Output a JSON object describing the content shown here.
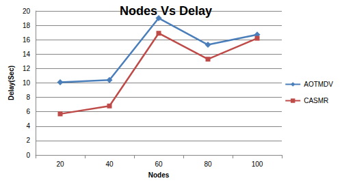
{
  "chart_data": {
    "type": "line",
    "title": "Nodes Vs Delay",
    "x_label": "Nodes",
    "y_label": "Delay(Sec)",
    "categories": [
      "20",
      "40",
      "60",
      "80",
      "100"
    ],
    "series": [
      {
        "name": "AOTMDV",
        "color": "#4a7ebb",
        "marker": "diamond",
        "values": [
          10.1,
          10.4,
          19.0,
          15.3,
          16.7
        ]
      },
      {
        "name": "CASMR",
        "color": "#be4b48",
        "marker": "square",
        "values": [
          5.7,
          6.8,
          16.9,
          13.3,
          16.2
        ]
      }
    ],
    "ylim": [
      0,
      20
    ],
    "yticks": [
      0,
      2,
      4,
      6,
      8,
      10,
      12,
      14,
      16,
      18,
      20
    ],
    "grid": true,
    "legend": "right"
  }
}
